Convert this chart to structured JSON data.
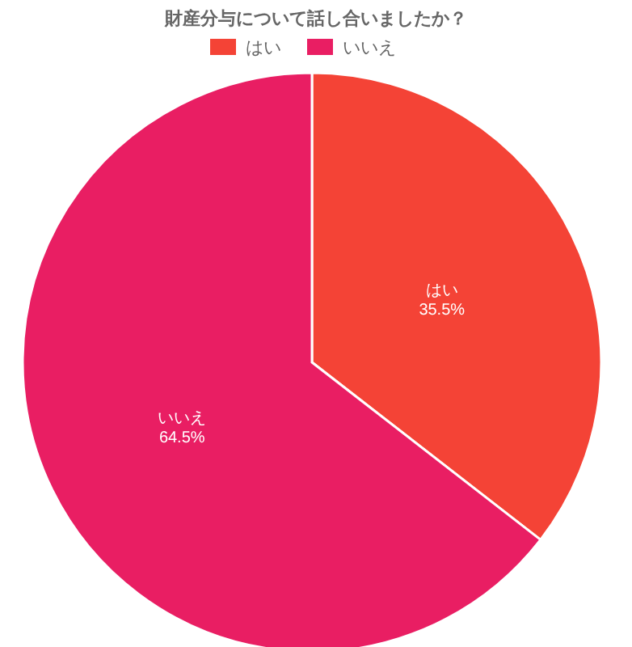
{
  "chart_data": {
    "type": "pie",
    "title": "財産分与について話し合いましたか？",
    "categories": [
      "はい",
      "いいえ"
    ],
    "values": [
      35.5,
      64.5
    ],
    "colors": [
      "#f44336",
      "#e91e63"
    ],
    "value_labels": [
      "35.5%",
      "64.5%"
    ],
    "legend": "top"
  }
}
